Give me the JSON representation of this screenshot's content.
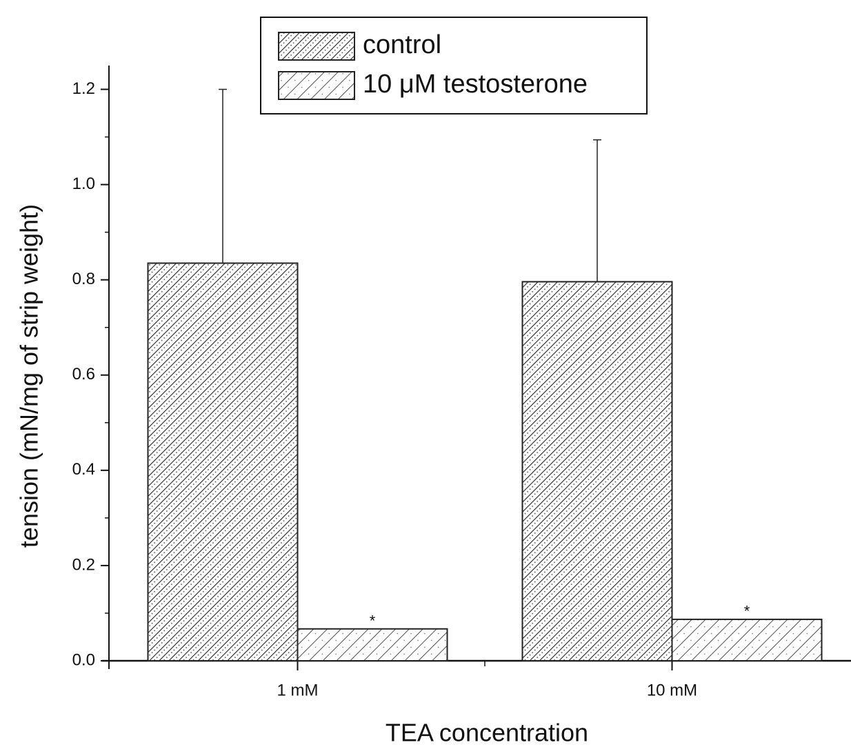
{
  "chart_data": {
    "type": "bar",
    "x_label": "TEA concentration",
    "y_label": "tension (mN/mg of strip weight)",
    "categories": [
      "1 mM",
      "10 mM"
    ],
    "series": [
      {
        "name": "control",
        "color": "#222222",
        "values": [
          0.835,
          0.796
        ],
        "errors": [
          0.365,
          0.298
        ]
      },
      {
        "name": "10 μM testosterone",
        "color": "#222222",
        "values": [
          0.067,
          0.087
        ],
        "annotations": [
          "*",
          "*"
        ]
      }
    ],
    "ylim": [
      0,
      1.25
    ],
    "yticks": [
      {
        "value": 0,
        "label": "0.0"
      },
      0.2,
      0.4,
      0.6,
      0.8,
      {
        "value": 1,
        "label": "1.0"
      },
      1.2
    ],
    "legend": "top"
  }
}
